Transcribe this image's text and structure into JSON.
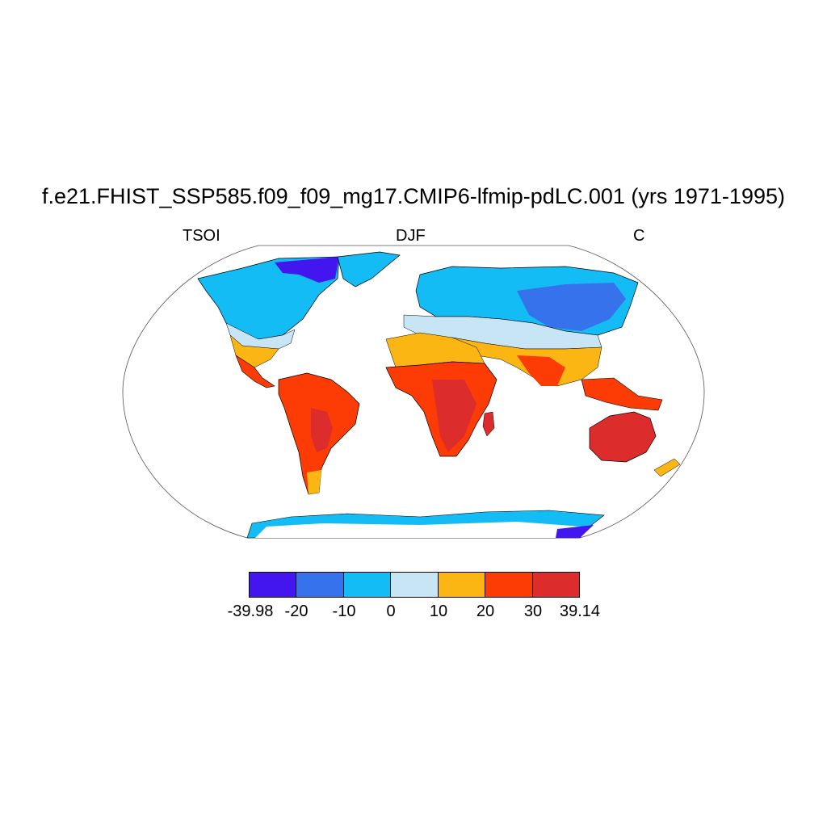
{
  "title": "f.e21.FHIST_SSP585.f09_f09_mg17.CMIP6-lfmip-pdLC.001 (yrs 1971-1995)",
  "subtitle_left": "TSOI",
  "subtitle_center": "DJF",
  "subtitle_right": "C",
  "colorbar": {
    "colors": [
      "#4316f0",
      "#3672ec",
      "#14bcf6",
      "#c8e5f6",
      "#fcb614",
      "#fc3c04",
      "#dc2c2c"
    ],
    "labels": [
      "-39.98",
      "-20",
      "-10",
      "0",
      "10",
      "20",
      "30",
      "39.14"
    ]
  }
}
